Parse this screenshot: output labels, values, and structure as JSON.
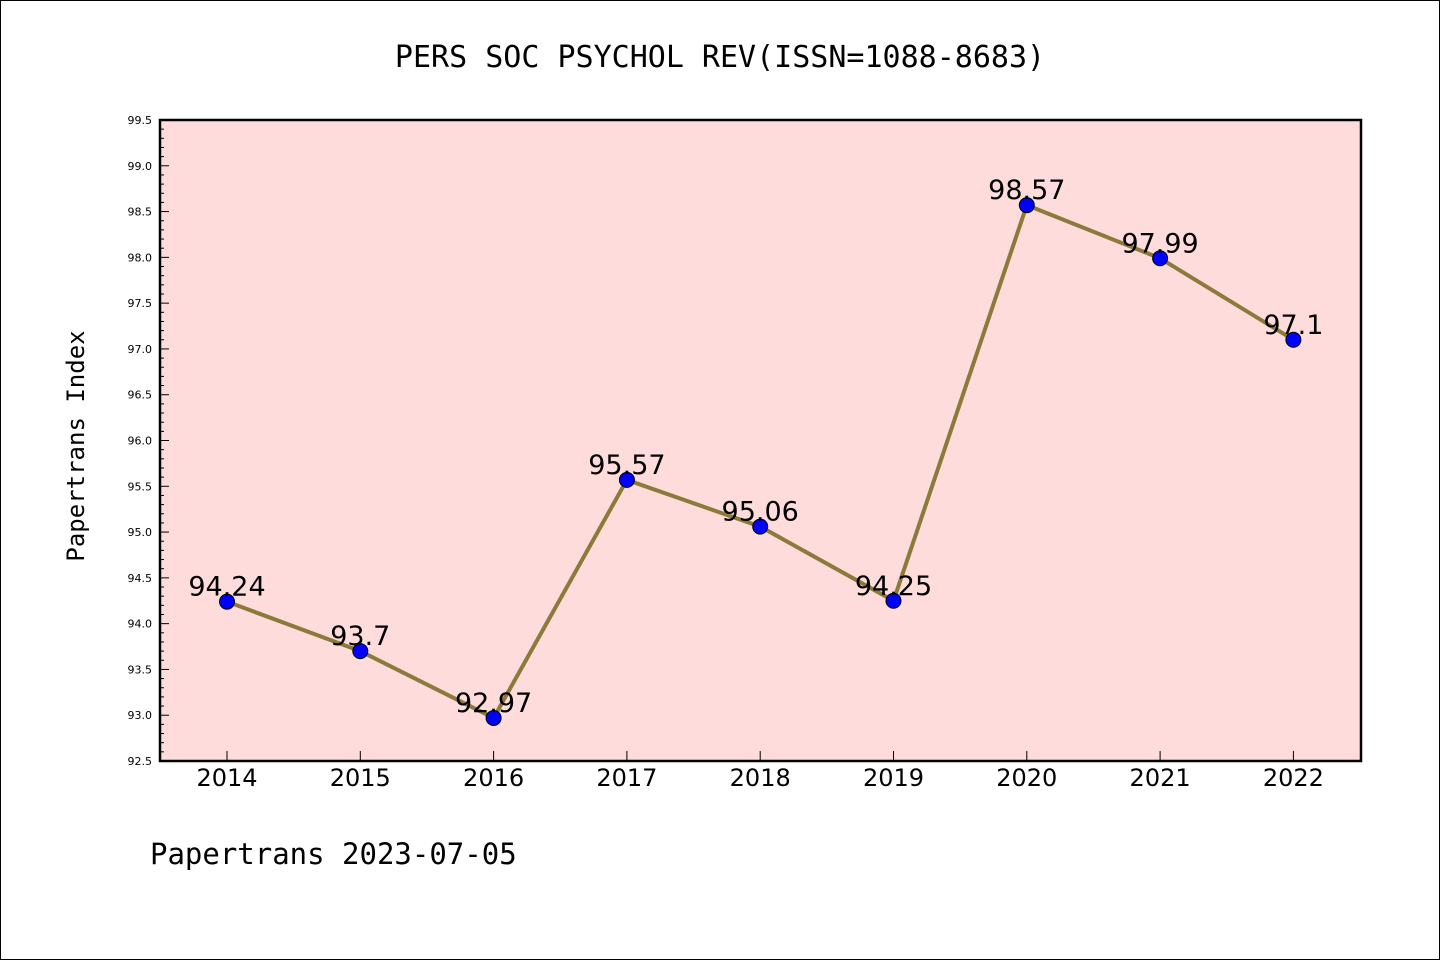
{
  "chart_data": {
    "type": "line",
    "title": "PERS SOC PSYCHOL REV(ISSN=1088-8683)",
    "ylabel": "Papertrans Index",
    "xlabel": "",
    "categories": [
      "2014",
      "2015",
      "2016",
      "2017",
      "2018",
      "2019",
      "2020",
      "2021",
      "2022"
    ],
    "values": [
      94.24,
      93.7,
      92.97,
      95.57,
      95.06,
      94.25,
      98.57,
      97.99,
      97.1
    ],
    "data_labels": [
      "94.24",
      "93.7",
      "92.97",
      "95.57",
      "95.06",
      "94.25",
      "98.57",
      "97.99",
      "97.1"
    ],
    "ylim": [
      92.5,
      99.5
    ],
    "yticks": [
      "92.5",
      "93.0",
      "93.5",
      "94.0",
      "94.5",
      "95.0",
      "95.5",
      "96.0",
      "96.5",
      "97.0",
      "97.5",
      "98.0",
      "98.5",
      "99.0",
      "99.5"
    ],
    "grid": false,
    "legend": "none",
    "colors": {
      "plot_background": "#ffdcdc",
      "line": "#8b7a3a",
      "marker": "#0000ff"
    }
  },
  "footer": "Papertrans 2023-07-05"
}
